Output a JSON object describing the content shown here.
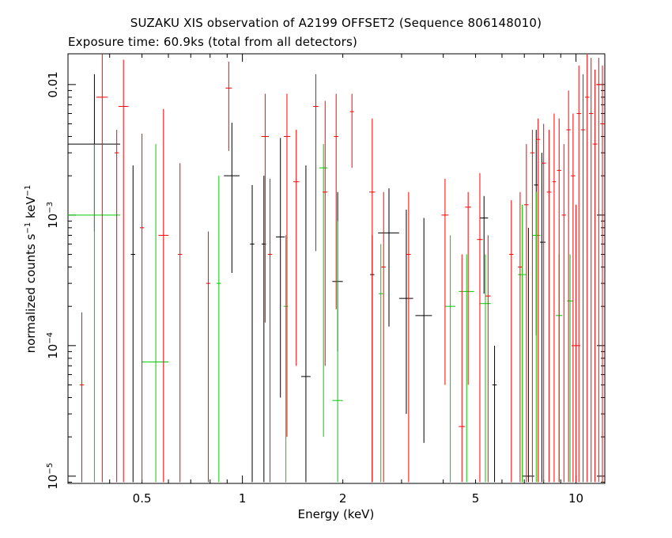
{
  "title": "SUZAKU XIS observation of A2199 OFFSET2 (Sequence 806148010)",
  "subtitle": "Exposure time: 60.9ks (total from all detectors)",
  "chart_data": {
    "type": "scatter",
    "xlabel": "Energy (keV)",
    "ylabel_parts": [
      "normalized counts s",
      "−1",
      " keV",
      "−1"
    ],
    "x_scale": "log",
    "y_scale": "log",
    "xlim": [
      0.3,
      12.2
    ],
    "ylim": [
      8.8e-06,
      0.0172
    ],
    "x_ticks": [
      {
        "value": 0.5,
        "label": "0.5"
      },
      {
        "value": 1,
        "label": "1"
      },
      {
        "value": 2,
        "label": "2"
      },
      {
        "value": 5,
        "label": "5"
      },
      {
        "value": 10,
        "label": "10"
      }
    ],
    "y_ticks": [
      {
        "value": 1e-05,
        "base": "10",
        "exp": "−5"
      },
      {
        "value": 0.0001,
        "base": "10",
        "exp": "−4"
      },
      {
        "value": 0.001,
        "base": "10",
        "exp": "−3"
      },
      {
        "value": 0.01,
        "base": "0.01",
        "exp": ""
      }
    ],
    "series": [
      {
        "color": "#000000",
        "points": [
          {
            "x": 0.36,
            "x_lo": 0.3,
            "x_hi": 0.43,
            "y": 0.0035,
            "y_lo": 0.00075,
            "y_hi": 0.012
          },
          {
            "x": 0.47,
            "y": 0.0005,
            "y_lo": 9e-06,
            "y_hi": 0.0024
          },
          {
            "x": 0.93,
            "x_lo": 0.88,
            "x_hi": 0.98,
            "y": 0.002,
            "y_lo": 0.00036,
            "y_hi": 0.0051
          },
          {
            "x": 1.07,
            "y": 0.0006,
            "y_lo": 9e-06,
            "y_hi": 0.0017
          },
          {
            "x": 1.16,
            "y": 0.0006,
            "y_lo": 9e-06,
            "y_hi": 0.002
          },
          {
            "x": 1.3,
            "x_lo": 1.26,
            "x_hi": 1.34,
            "y": 0.00068,
            "y_lo": 4e-05,
            "y_hi": 0.0039
          },
          {
            "x": 1.55,
            "x_lo": 1.5,
            "x_hi": 1.6,
            "y": 5.8e-05,
            "y_lo": 9e-06,
            "y_hi": 0.0024
          },
          {
            "x": 1.93,
            "x_lo": 1.86,
            "x_hi": 2.0,
            "y": 0.00031,
            "y_lo": 9e-05,
            "y_hi": 0.0015
          },
          {
            "x": 2.45,
            "y": 0.00035,
            "y_lo": 9e-06,
            "y_hi": 0.0007
          },
          {
            "x": 2.75,
            "x_lo": 2.55,
            "x_hi": 2.95,
            "y": 0.00073,
            "y_lo": 0.00014,
            "y_hi": 0.0016
          },
          {
            "x": 3.1,
            "x_lo": 2.95,
            "x_hi": 3.25,
            "y": 0.00023,
            "y_lo": 3e-05,
            "y_hi": 0.0011
          },
          {
            "x": 3.5,
            "x_lo": 3.3,
            "x_hi": 3.7,
            "y": 0.00017,
            "y_lo": 1.8e-05,
            "y_hi": 0.00095
          },
          {
            "x": 5.3,
            "x_lo": 5.15,
            "x_hi": 5.45,
            "y": 0.00095,
            "y_lo": 0.00025,
            "y_hi": 0.0014
          },
          {
            "x": 5.7,
            "y": 5e-05,
            "y_lo": 9e-06,
            "y_hi": 0.0001
          },
          {
            "x": 7.2,
            "x_lo": 6.9,
            "x_hi": 7.5,
            "y": 1e-05,
            "y_lo": 9e-06,
            "y_hi": 0.0008
          },
          {
            "x": 7.6,
            "y": 0.0017,
            "y_lo": 0.00012,
            "y_hi": 0.0045
          },
          {
            "x": 7.9,
            "x_lo": 7.8,
            "x_hi": 8.1,
            "y": 0.00062,
            "y_lo": 9e-06,
            "y_hi": 0.003
          }
        ]
      },
      {
        "color": "#00cc00",
        "points": [
          {
            "x": 0.36,
            "x_lo": 0.3,
            "x_hi": 0.43,
            "y": 0.001,
            "y_lo": 9e-06,
            "y_hi": 0.0035
          },
          {
            "x": 0.55,
            "x_lo": 0.5,
            "x_hi": 0.6,
            "y": 7.5e-05,
            "y_lo": 9e-06,
            "y_hi": 0.0035
          },
          {
            "x": 0.85,
            "y": 0.0003,
            "y_lo": 9e-06,
            "y_hi": 0.002
          },
          {
            "x": 1.35,
            "y": 0.0002,
            "y_lo": 9e-06,
            "y_hi": 0.0007
          },
          {
            "x": 1.75,
            "x_lo": 1.7,
            "x_hi": 1.8,
            "y": 0.0023,
            "y_lo": 2e-05,
            "y_hi": 0.0035
          },
          {
            "x": 1.93,
            "x_lo": 1.86,
            "x_hi": 2.0,
            "y": 3.8e-05,
            "y_lo": 9e-06,
            "y_hi": 0.0009
          },
          {
            "x": 2.6,
            "y": 0.00025,
            "y_lo": 9e-06,
            "y_hi": 0.0006
          },
          {
            "x": 4.2,
            "x_lo": 4.05,
            "x_hi": 4.35,
            "y": 0.0002,
            "y_lo": 9e-06,
            "y_hi": 0.0007
          },
          {
            "x": 4.7,
            "x_lo": 4.45,
            "x_hi": 4.95,
            "y": 0.00026,
            "y_lo": 9e-06,
            "y_hi": 0.0005
          },
          {
            "x": 5.35,
            "x_lo": 5.15,
            "x_hi": 5.55,
            "y": 0.00021,
            "y_lo": 9e-06,
            "y_hi": 0.0005
          },
          {
            "x": 6.9,
            "x_lo": 6.7,
            "x_hi": 7.1,
            "y": 0.00035,
            "y_lo": 9e-06,
            "y_hi": 0.0012
          },
          {
            "x": 7.6,
            "x_lo": 7.4,
            "x_hi": 7.8,
            "y": 0.0007,
            "y_lo": 9e-06,
            "y_hi": 0.0015
          },
          {
            "x": 8.9,
            "x_lo": 8.7,
            "x_hi": 9.1,
            "y": 0.00017,
            "y_lo": 9e-06,
            "y_hi": 0.0005
          },
          {
            "x": 9.6,
            "x_lo": 9.4,
            "x_hi": 9.8,
            "y": 0.00022,
            "y_lo": 9e-06,
            "y_hi": 0.0005
          }
        ]
      },
      {
        "color": "#ff0000",
        "points": [
          {
            "x": 0.33,
            "y": 5e-05,
            "y_lo": 9e-06,
            "y_hi": 0.00018
          },
          {
            "x": 0.38,
            "x_lo": 0.365,
            "x_hi": 0.395,
            "y": 0.008,
            "y_lo": 9e-06,
            "y_hi": 0.018
          },
          {
            "x": 0.42,
            "y": 0.003,
            "y_lo": 9e-06,
            "y_hi": 0.0045
          },
          {
            "x": 0.44,
            "x_lo": 0.425,
            "x_hi": 0.455,
            "y": 0.0068,
            "y_lo": 9e-06,
            "y_hi": 0.0155
          },
          {
            "x": 0.5,
            "y": 0.0008,
            "y_lo": 9e-06,
            "y_hi": 0.0042
          },
          {
            "x": 0.58,
            "x_lo": 0.56,
            "x_hi": 0.6,
            "y": 0.0007,
            "y_lo": 9e-06,
            "y_hi": 0.0065
          },
          {
            "x": 0.65,
            "y": 0.0005,
            "y_lo": 9e-06,
            "y_hi": 0.0025
          },
          {
            "x": 0.79,
            "y": 0.0003,
            "y_lo": 9e-06,
            "y_hi": 0.00075
          },
          {
            "x": 0.91,
            "x_lo": 0.89,
            "x_hi": 0.93,
            "y": 0.0094,
            "y_lo": 0.0031,
            "y_hi": 0.015
          },
          {
            "x": 1.17,
            "x_lo": 1.14,
            "x_hi": 1.2,
            "y": 0.004,
            "y_lo": 0.00015,
            "y_hi": 0.0085
          },
          {
            "x": 1.21,
            "y": 0.0005,
            "y_lo": 9e-06,
            "y_hi": 0.0019
          },
          {
            "x": 1.36,
            "x_lo": 1.33,
            "x_hi": 1.39,
            "y": 0.004,
            "y_lo": 2e-05,
            "y_hi": 0.0085
          },
          {
            "x": 1.45,
            "x_lo": 1.42,
            "x_hi": 1.48,
            "y": 0.0018,
            "y_lo": 7e-05,
            "y_hi": 0.0045
          },
          {
            "x": 1.66,
            "x_lo": 1.63,
            "x_hi": 1.69,
            "y": 0.0068,
            "y_lo": 0.00053,
            "y_hi": 0.012
          },
          {
            "x": 1.77,
            "x_lo": 1.74,
            "x_hi": 1.8,
            "y": 0.0015,
            "y_lo": 7e-05,
            "y_hi": 0.0075
          },
          {
            "x": 1.91,
            "x_lo": 1.88,
            "x_hi": 1.94,
            "y": 0.004,
            "y_lo": 0.00019,
            "y_hi": 0.0085
          },
          {
            "x": 2.13,
            "x_lo": 2.1,
            "x_hi": 2.16,
            "y": 0.0062,
            "y_lo": 0.0023,
            "y_hi": 0.0085
          },
          {
            "x": 2.45,
            "x_lo": 2.4,
            "x_hi": 2.5,
            "y": 0.0015,
            "y_lo": 9e-06,
            "y_hi": 0.0055
          },
          {
            "x": 2.65,
            "y": 0.0004,
            "y_lo": 9e-06,
            "y_hi": 0.0015
          },
          {
            "x": 3.15,
            "y": 0.0005,
            "y_lo": 9e-06,
            "y_hi": 0.0015
          },
          {
            "x": 4.05,
            "x_lo": 3.95,
            "x_hi": 4.15,
            "y": 0.001,
            "y_lo": 5e-05,
            "y_hi": 0.0019
          },
          {
            "x": 4.55,
            "x_lo": 4.45,
            "x_hi": 4.65,
            "y": 2.4e-05,
            "y_lo": 9e-06,
            "y_hi": 0.0005
          },
          {
            "x": 4.75,
            "x_lo": 4.65,
            "x_hi": 4.85,
            "y": 0.00115,
            "y_lo": 5e-05,
            "y_hi": 0.0015
          },
          {
            "x": 5.15,
            "x_lo": 5.05,
            "x_hi": 5.25,
            "y": 0.00065,
            "y_lo": 9e-06,
            "y_hi": 0.0021
          },
          {
            "x": 5.45,
            "x_lo": 5.35,
            "x_hi": 5.55,
            "y": 0.00024,
            "y_lo": 9e-06,
            "y_hi": 0.0007
          },
          {
            "x": 6.4,
            "y": 0.0005,
            "y_lo": 9e-06,
            "y_hi": 0.0013
          },
          {
            "x": 6.8,
            "x_lo": 6.7,
            "x_hi": 6.9,
            "y": 0.0004,
            "y_lo": 9e-06,
            "y_hi": 0.0015
          },
          {
            "x": 7.1,
            "y": 0.0012,
            "y_lo": 9e-06,
            "y_hi": 0.0035
          },
          {
            "x": 7.4,
            "y": 0.003,
            "y_lo": 9e-06,
            "y_hi": 0.0045
          },
          {
            "x": 7.7,
            "x_lo": 7.6,
            "x_hi": 7.8,
            "y": 0.0038,
            "y_lo": 9e-06,
            "y_hi": 0.0055
          },
          {
            "x": 8.0,
            "y": 0.0025,
            "y_lo": 9e-06,
            "y_hi": 0.005
          },
          {
            "x": 8.3,
            "y": 0.0015,
            "y_lo": 9e-06,
            "y_hi": 0.0045
          },
          {
            "x": 8.6,
            "x_lo": 8.5,
            "x_hi": 8.7,
            "y": 0.0018,
            "y_lo": 9e-06,
            "y_hi": 0.006
          },
          {
            "x": 8.9,
            "y": 0.0022,
            "y_lo": 9e-06,
            "y_hi": 0.0055
          },
          {
            "x": 9.2,
            "y": 0.001,
            "y_lo": 9e-06,
            "y_hi": 0.0035
          },
          {
            "x": 9.5,
            "y": 0.0045,
            "y_lo": 9e-06,
            "y_hi": 0.009
          },
          {
            "x": 9.8,
            "y": 0.002,
            "y_lo": 9e-06,
            "y_hi": 0.006
          },
          {
            "x": 10.0,
            "x_lo": 9.7,
            "x_hi": 10.3,
            "y": 0.0001,
            "y_lo": 9e-06,
            "y_hi": 0.0012
          },
          {
            "x": 10.2,
            "y": 0.006,
            "y_lo": 9e-06,
            "y_hi": 0.014
          },
          {
            "x": 10.5,
            "y": 0.0045,
            "y_lo": 9e-06,
            "y_hi": 0.012
          },
          {
            "x": 10.8,
            "y": 0.008,
            "y_lo": 9e-06,
            "y_hi": 0.017
          },
          {
            "x": 11.1,
            "y": 0.006,
            "y_lo": 9e-06,
            "y_hi": 0.016
          },
          {
            "x": 11.4,
            "y": 0.0035,
            "y_lo": 9e-06,
            "y_hi": 0.013
          },
          {
            "x": 11.7,
            "x_lo": 11.5,
            "x_hi": 11.9,
            "y": 0.01,
            "y_lo": 9e-06,
            "y_hi": 0.016
          },
          {
            "x": 12.0,
            "y": 0.005,
            "y_lo": 9e-06,
            "y_hi": 0.014
          }
        ]
      }
    ]
  }
}
